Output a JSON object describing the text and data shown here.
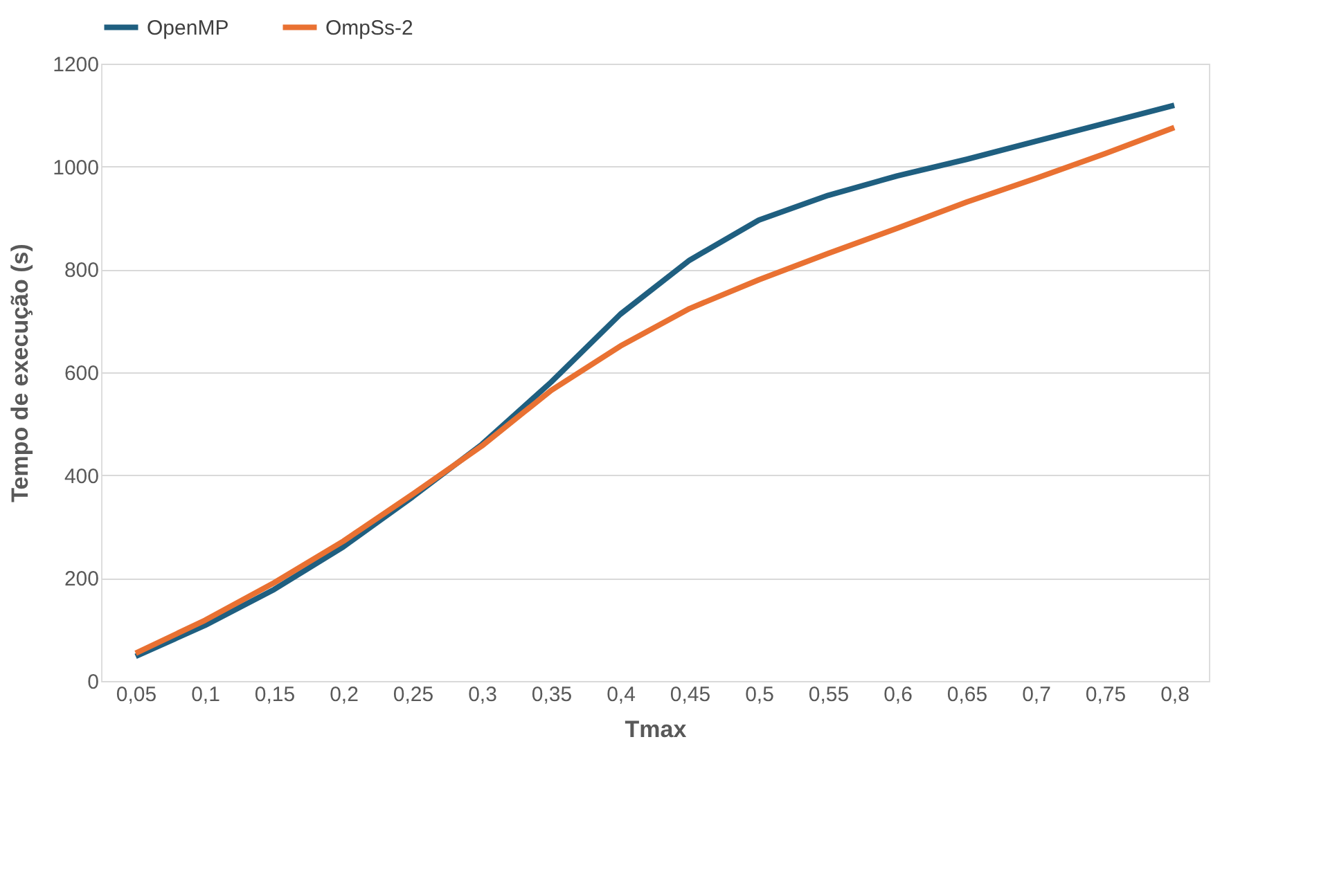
{
  "chart_data": {
    "type": "line",
    "xlabel": "Tmax",
    "ylabel": "Tempo de execução (s)",
    "categories": [
      "0,05",
      "0,1",
      "0,15",
      "0,2",
      "0,25",
      "0,3",
      "0,35",
      "0,4",
      "0,45",
      "0,5",
      "0,55",
      "0,6",
      "0,65",
      "0,7",
      "0,75",
      "0,8"
    ],
    "series": [
      {
        "name": "OpenMP",
        "color": "#1f5f80",
        "values": [
          48,
          108,
          178,
          261,
          358,
          460,
          581,
          713,
          818,
          896,
          944,
          982,
          1014,
          1049,
          1084,
          1119
        ]
      },
      {
        "name": "OmpSs-2",
        "color": "#e97132",
        "values": [
          54,
          118,
          191,
          272,
          363,
          457,
          565,
          651,
          724,
          780,
          831,
          880,
          931,
          977,
          1025,
          1076
        ]
      }
    ],
    "ylim": [
      0,
      1200
    ],
    "yticks": [
      0,
      200,
      400,
      600,
      800,
      1000,
      1200
    ],
    "grid": "y",
    "legend": "top",
    "marker": "none",
    "line_style": "solid"
  }
}
